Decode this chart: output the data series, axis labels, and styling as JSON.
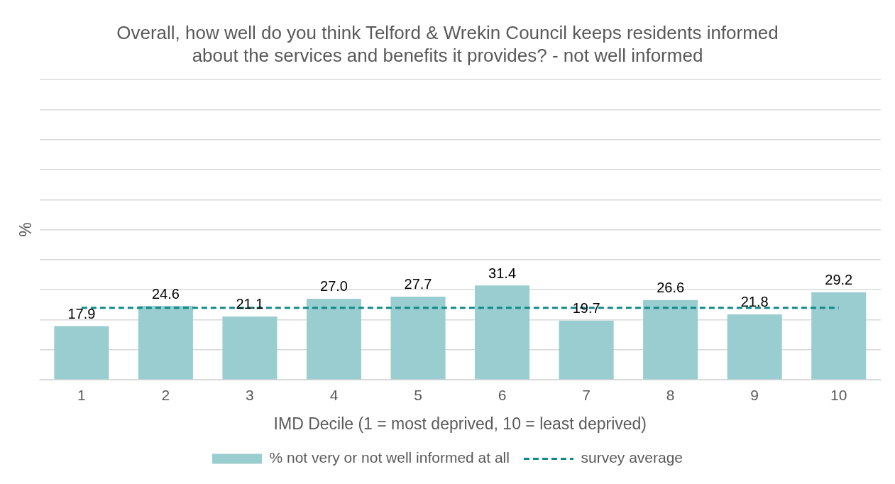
{
  "chart_data": {
    "type": "bar",
    "title": "Overall, how well do you think Telford & Wrekin Council keeps residents informed about the services and benefits it provides? - not well informed",
    "xlabel": "IMD Decile (1 = most deprived, 10 = least deprived)",
    "ylabel": "%",
    "categories": [
      "1",
      "2",
      "3",
      "4",
      "5",
      "6",
      "7",
      "8",
      "9",
      "10"
    ],
    "series": [
      {
        "name": "% not very or not well informed at all",
        "color": "#99cdd0",
        "values": [
          17.9,
          24.6,
          21.1,
          27.0,
          27.7,
          31.4,
          19.7,
          26.6,
          21.8,
          29.2
        ],
        "value_labels": [
          "17.9",
          "24.6",
          "21.1",
          "27.0",
          "27.7",
          "31.4",
          "19.7",
          "26.6",
          "21.8",
          "29.2"
        ]
      },
      {
        "name": "survey average",
        "type": "line",
        "color": "#108a8c",
        "line_style": "dashed",
        "marker": "none",
        "values": [
          24,
          24,
          24,
          24,
          24,
          24,
          24,
          24,
          24,
          24
        ]
      }
    ],
    "ylim": [
      0,
      100
    ],
    "tick_labels": "x",
    "grid": "y",
    "legend": "bottom"
  }
}
